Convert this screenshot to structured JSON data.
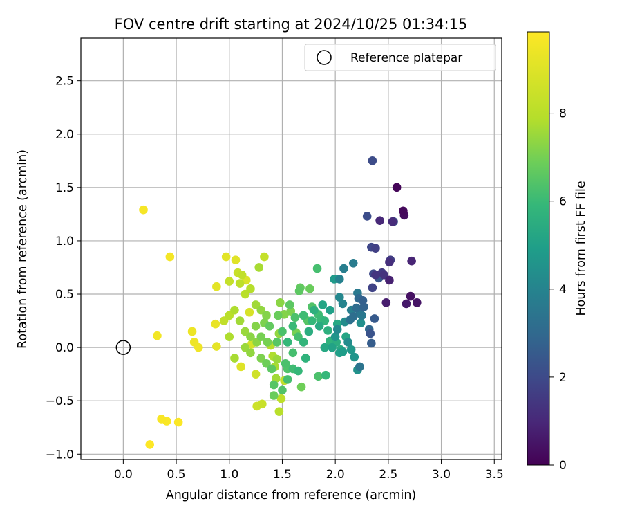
{
  "chart_data": {
    "type": "scatter",
    "title": "FOV centre drift starting at 2024/10/25 01:34:15",
    "xlabel": "Angular distance from reference (arcmin)",
    "ylabel": "Rotation from reference (arcmin)",
    "xlim": [
      -0.4,
      3.57
    ],
    "ylim": [
      -1.05,
      2.9
    ],
    "xticks": [
      0.0,
      0.5,
      1.0,
      1.5,
      2.0,
      2.5,
      3.0,
      3.5
    ],
    "xtick_labels": [
      "0.0",
      "0.5",
      "1.0",
      "1.5",
      "2.0",
      "2.5",
      "3.0",
      "3.5"
    ],
    "yticks": [
      -1.0,
      -0.5,
      0.0,
      0.5,
      1.0,
      1.5,
      2.0,
      2.5
    ],
    "ytick_labels": [
      "−1.0",
      "−0.5",
      "0.0",
      "0.5",
      "1.0",
      "1.5",
      "2.0",
      "2.5"
    ],
    "grid": true,
    "legend": {
      "placement": "top-right",
      "entries": [
        {
          "label": "Reference platepar",
          "marker": "open-circle",
          "color": "#000000"
        }
      ]
    },
    "reference_point": {
      "x": 0.0,
      "y": 0.0
    },
    "colorbar": {
      "label": "Hours from first FF file",
      "colormap": "viridis",
      "range": [
        0,
        9.85
      ],
      "ticks": [
        0,
        2,
        4,
        6,
        8
      ],
      "tick_labels": [
        "0",
        "2",
        "4",
        "6",
        "8"
      ]
    },
    "points": [
      [
        2.58,
        1.5,
        0.1
      ],
      [
        2.64,
        1.28,
        0.2
      ],
      [
        2.65,
        1.24,
        0.3
      ],
      [
        2.71,
        0.48,
        0.4
      ],
      [
        2.77,
        0.42,
        0.5
      ],
      [
        2.67,
        0.41,
        0.6
      ],
      [
        2.48,
        0.42,
        0.7
      ],
      [
        2.51,
        0.63,
        0.8
      ],
      [
        2.72,
        0.81,
        0.9
      ],
      [
        2.42,
        1.19,
        1.0
      ],
      [
        2.54,
        1.18,
        1.1
      ],
      [
        2.51,
        0.8,
        1.2
      ],
      [
        2.46,
        0.68,
        1.3
      ],
      [
        2.38,
        0.68,
        1.4
      ],
      [
        2.44,
        0.7,
        1.5
      ],
      [
        2.52,
        0.82,
        1.6
      ],
      [
        2.38,
        0.93,
        1.7
      ],
      [
        2.35,
        0.56,
        1.8
      ],
      [
        2.34,
        0.94,
        1.9
      ],
      [
        2.36,
        0.69,
        2.0
      ],
      [
        2.35,
        1.75,
        2.05
      ],
      [
        2.3,
        1.23,
        2.1
      ],
      [
        2.55,
        1.18,
        2.2
      ],
      [
        2.33,
        0.13,
        2.3
      ],
      [
        2.41,
        0.65,
        2.4
      ],
      [
        2.37,
        0.27,
        2.5
      ],
      [
        2.34,
        0.04,
        2.6
      ],
      [
        2.26,
        0.44,
        2.7
      ],
      [
        2.27,
        0.38,
        2.8
      ],
      [
        2.32,
        0.17,
        2.9
      ],
      [
        2.22,
        0.46,
        3.0
      ],
      [
        2.2,
        0.37,
        3.1
      ],
      [
        2.17,
        0.29,
        3.2
      ],
      [
        2.14,
        0.26,
        3.3
      ],
      [
        2.23,
        -0.18,
        3.4
      ],
      [
        2.23,
        0.33,
        3.5
      ],
      [
        2.21,
        0.51,
        3.6
      ],
      [
        2.17,
        0.79,
        3.7
      ],
      [
        2.08,
        0.74,
        3.8
      ],
      [
        2.04,
        0.64,
        3.9
      ],
      [
        2.07,
        0.41,
        4.0
      ],
      [
        2.04,
        0.47,
        4.1
      ],
      [
        2.02,
        0.17,
        4.2
      ],
      [
        2.09,
        0.24,
        4.3
      ],
      [
        2.24,
        0.23,
        4.4
      ],
      [
        2.21,
        -0.21,
        4.5
      ],
      [
        2.18,
        -0.09,
        4.6
      ],
      [
        2.15,
        -0.02,
        4.7
      ],
      [
        1.99,
        0.64,
        4.8
      ],
      [
        2.07,
        -0.04,
        4.9
      ],
      [
        2.04,
        -0.05,
        5.0
      ],
      [
        1.97,
        0.0,
        5.1
      ],
      [
        2.1,
        0.1,
        5.2
      ],
      [
        2.02,
        0.22,
        5.3
      ],
      [
        2.05,
        -0.02,
        5.4
      ],
      [
        2.01,
        0.05,
        5.5
      ],
      [
        1.93,
        0.16,
        5.6
      ],
      [
        1.95,
        0.06,
        5.7
      ],
      [
        1.9,
        0.25,
        5.8
      ],
      [
        1.91,
        -0.26,
        5.9
      ],
      [
        1.86,
        0.27,
        6.0
      ],
      [
        1.84,
        0.31,
        6.1
      ],
      [
        1.83,
        0.74,
        6.2
      ],
      [
        1.84,
        -0.27,
        6.3
      ],
      [
        1.78,
        0.38,
        6.4
      ],
      [
        1.74,
        0.25,
        6.5
      ],
      [
        1.66,
        0.53,
        6.6
      ],
      [
        1.67,
        0.56,
        6.7
      ],
      [
        1.76,
        0.55,
        6.8
      ],
      [
        1.68,
        -0.37,
        6.9
      ],
      [
        1.63,
        0.14,
        7.0
      ],
      [
        1.58,
        0.34,
        7.1
      ],
      [
        1.52,
        0.31,
        7.2
      ],
      [
        1.48,
        0.42,
        7.3
      ],
      [
        1.47,
        0.13,
        7.4
      ],
      [
        1.45,
        -0.11,
        7.5
      ],
      [
        1.44,
        -0.29,
        7.6
      ],
      [
        1.43,
        -0.18,
        7.7
      ],
      [
        1.41,
        -0.08,
        7.8
      ],
      [
        1.39,
        0.02,
        7.9
      ],
      [
        1.47,
        -0.6,
        8.0
      ],
      [
        1.49,
        -0.48,
        8.1
      ],
      [
        1.52,
        -0.31,
        8.2
      ],
      [
        1.33,
        0.85,
        8.3
      ],
      [
        1.31,
        -0.53,
        8.4
      ],
      [
        1.26,
        -0.55,
        8.5
      ],
      [
        1.25,
        -0.25,
        8.6
      ],
      [
        1.21,
        0.03,
        8.7
      ],
      [
        1.19,
        0.33,
        8.8
      ],
      [
        1.16,
        0.63,
        8.9
      ],
      [
        1.11,
        -0.18,
        9.0
      ],
      [
        1.06,
        0.82,
        9.05
      ],
      [
        0.97,
        0.85,
        9.1
      ],
      [
        0.88,
        0.57,
        9.15
      ],
      [
        0.88,
        0.01,
        9.2
      ],
      [
        0.87,
        0.22,
        9.3
      ],
      [
        0.65,
        0.15,
        9.4
      ],
      [
        0.67,
        0.05,
        9.45
      ],
      [
        0.71,
        0.0,
        9.5
      ],
      [
        0.32,
        0.11,
        9.55
      ],
      [
        0.44,
        0.85,
        9.6
      ],
      [
        0.19,
        1.29,
        9.65
      ],
      [
        0.36,
        -0.67,
        9.7
      ],
      [
        0.41,
        -0.69,
        9.75
      ],
      [
        0.52,
        -0.7,
        9.8
      ],
      [
        0.25,
        -0.91,
        9.85
      ],
      [
        1.55,
        0.05,
        5.9
      ],
      [
        1.6,
        0.2,
        6.0
      ],
      [
        1.65,
        0.1,
        6.2
      ],
      [
        1.7,
        0.3,
        6.1
      ],
      [
        1.5,
        0.15,
        6.3
      ],
      [
        1.45,
        0.05,
        6.5
      ],
      [
        1.55,
        -0.2,
        6.4
      ],
      [
        1.6,
        -0.05,
        6.2
      ],
      [
        1.4,
        -0.2,
        6.6
      ],
      [
        1.38,
        0.2,
        6.7
      ],
      [
        1.42,
        -0.35,
        6.5
      ],
      [
        1.53,
        -0.15,
        6.3
      ],
      [
        1.3,
        0.1,
        7.0
      ],
      [
        1.25,
        0.2,
        7.2
      ],
      [
        1.2,
        0.1,
        7.3
      ],
      [
        1.15,
        0.15,
        7.5
      ],
      [
        1.1,
        0.25,
        7.6
      ],
      [
        1.05,
        0.35,
        7.8
      ],
      [
        1.0,
        0.3,
        8.0
      ],
      [
        0.95,
        0.25,
        8.2
      ],
      [
        1.1,
        0.6,
        8.1
      ],
      [
        1.15,
        0.5,
        8.0
      ],
      [
        1.2,
        0.55,
        7.9
      ],
      [
        1.25,
        0.4,
        7.6
      ],
      [
        1.3,
        0.35,
        7.4
      ],
      [
        1.35,
        0.3,
        7.2
      ],
      [
        1.28,
        0.75,
        7.7
      ],
      [
        1.0,
        0.62,
        8.3
      ],
      [
        1.08,
        0.7,
        8.4
      ],
      [
        1.12,
        0.68,
        8.2
      ],
      [
        1.0,
        0.1,
        7.8
      ],
      [
        1.05,
        -0.1,
        7.7
      ],
      [
        1.15,
        0.0,
        7.5
      ],
      [
        1.2,
        -0.05,
        7.4
      ],
      [
        1.3,
        -0.1,
        7.1
      ],
      [
        1.35,
        -0.15,
        6.9
      ],
      [
        1.75,
        0.15,
        5.5
      ],
      [
        1.8,
        0.35,
        5.6
      ],
      [
        1.85,
        0.2,
        5.4
      ],
      [
        1.9,
        0.0,
        5.3
      ],
      [
        1.7,
        0.05,
        5.8
      ],
      [
        1.72,
        -0.1,
        5.7
      ],
      [
        1.62,
        0.28,
        6.3
      ],
      [
        1.57,
        0.4,
        6.6
      ],
      [
        1.46,
        0.3,
        6.8
      ],
      [
        1.36,
        0.05,
        7.0
      ],
      [
        1.33,
        0.23,
        7.1
      ],
      [
        1.26,
        0.05,
        7.3
      ],
      [
        1.5,
        -0.4,
        6.4
      ],
      [
        1.42,
        -0.45,
        6.8
      ],
      [
        1.55,
        -0.3,
        6.2
      ],
      [
        1.6,
        -0.2,
        6.1
      ],
      [
        1.65,
        -0.22,
        5.9
      ],
      [
        2.0,
        0.1,
        4.6
      ],
      [
        2.12,
        0.05,
        4.3
      ],
      [
        2.15,
        0.35,
        3.8
      ],
      [
        2.25,
        0.3,
        3.6
      ],
      [
        1.95,
        0.35,
        5.0
      ],
      [
        1.88,
        0.4,
        5.2
      ],
      [
        1.78,
        0.25,
        5.9
      ]
    ]
  }
}
